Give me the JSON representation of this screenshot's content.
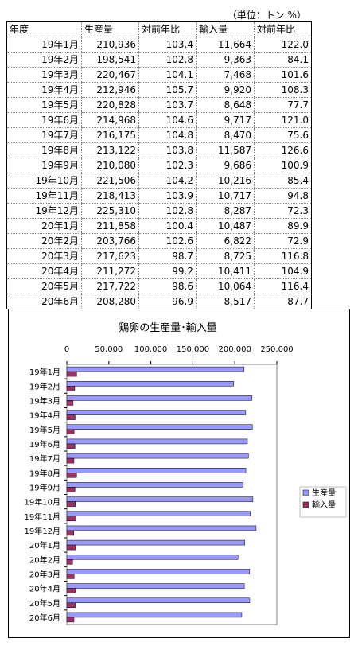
{
  "table": {
    "unit": "（単位：トン %）",
    "headers": [
      "年度",
      "生産量",
      "対前年比",
      "輸入量",
      "対前年比"
    ],
    "rows": [
      [
        "19年1月",
        "210,936",
        "103.4",
        "11,664",
        "122.0"
      ],
      [
        "19年2月",
        "198,541",
        "102.8",
        "9,363",
        "84.1"
      ],
      [
        "19年3月",
        "220,467",
        "104.1",
        "7,468",
        "101.6"
      ],
      [
        "19年4月",
        "212,946",
        "105.7",
        "9,920",
        "108.3"
      ],
      [
        "19年5月",
        "220,828",
        "103.7",
        "8,648",
        "77.7"
      ],
      [
        "19年6月",
        "214,968",
        "104.6",
        "9,717",
        "121.0"
      ],
      [
        "19年7月",
        "216,175",
        "104.8",
        "8,470",
        "75.6"
      ],
      [
        "19年8月",
        "213,122",
        "103.8",
        "11,587",
        "126.6"
      ],
      [
        "19年9月",
        "210,080",
        "102.3",
        "9,686",
        "100.9"
      ],
      [
        "19年10月",
        "221,506",
        "104.2",
        "10,216",
        "85.4"
      ],
      [
        "19年11月",
        "218,413",
        "103.9",
        "10,717",
        "94.8"
      ],
      [
        "19年12月",
        "225,310",
        "102.8",
        "8,287",
        "72.3"
      ],
      [
        "20年1月",
        "211,858",
        "100.4",
        "10,487",
        "89.9"
      ],
      [
        "20年2月",
        "203,766",
        "102.6",
        "6,822",
        "72.9"
      ],
      [
        "20年3月",
        "217,623",
        "98.7",
        "8,725",
        "116.8"
      ],
      [
        "20年4月",
        "211,272",
        "99.2",
        "10,411",
        "104.9"
      ],
      [
        "20年5月",
        "217,722",
        "98.6",
        "10,064",
        "116.4"
      ],
      [
        "20年6月",
        "208,280",
        "96.9",
        "8,517",
        "87.7"
      ]
    ]
  },
  "chart_data": {
    "type": "bar",
    "orientation": "horizontal",
    "title": "鶏卵の生産量･輸入量",
    "categories": [
      "19年1月",
      "19年2月",
      "19年3月",
      "19年4月",
      "19年5月",
      "19年6月",
      "19年7月",
      "19年8月",
      "19年9月",
      "19年10月",
      "19年11月",
      "19年12月",
      "20年1月",
      "20年2月",
      "20年3月",
      "20年4月",
      "20年5月",
      "20年6月"
    ],
    "series": [
      {
        "name": "生産量",
        "color": "#9999ff",
        "values": [
          210936,
          198541,
          220467,
          212946,
          220828,
          214968,
          216175,
          213122,
          210080,
          221506,
          218413,
          225310,
          211858,
          203766,
          217623,
          211272,
          217722,
          208280
        ]
      },
      {
        "name": "輸入量",
        "color": "#993366",
        "values": [
          11664,
          9363,
          7468,
          9920,
          8648,
          9717,
          8470,
          11587,
          9686,
          10216,
          10717,
          8287,
          10487,
          6822,
          8725,
          10411,
          10064,
          8517
        ]
      }
    ],
    "xlim": [
      0,
      250000
    ],
    "xticks": [
      0,
      50000,
      100000,
      150000,
      200000,
      250000
    ],
    "xtick_labels": [
      "0",
      "50,000",
      "100,000",
      "150,000",
      "200,000",
      "250,000"
    ],
    "x_axis_position": "top",
    "legend": "right",
    "grid": false
  }
}
